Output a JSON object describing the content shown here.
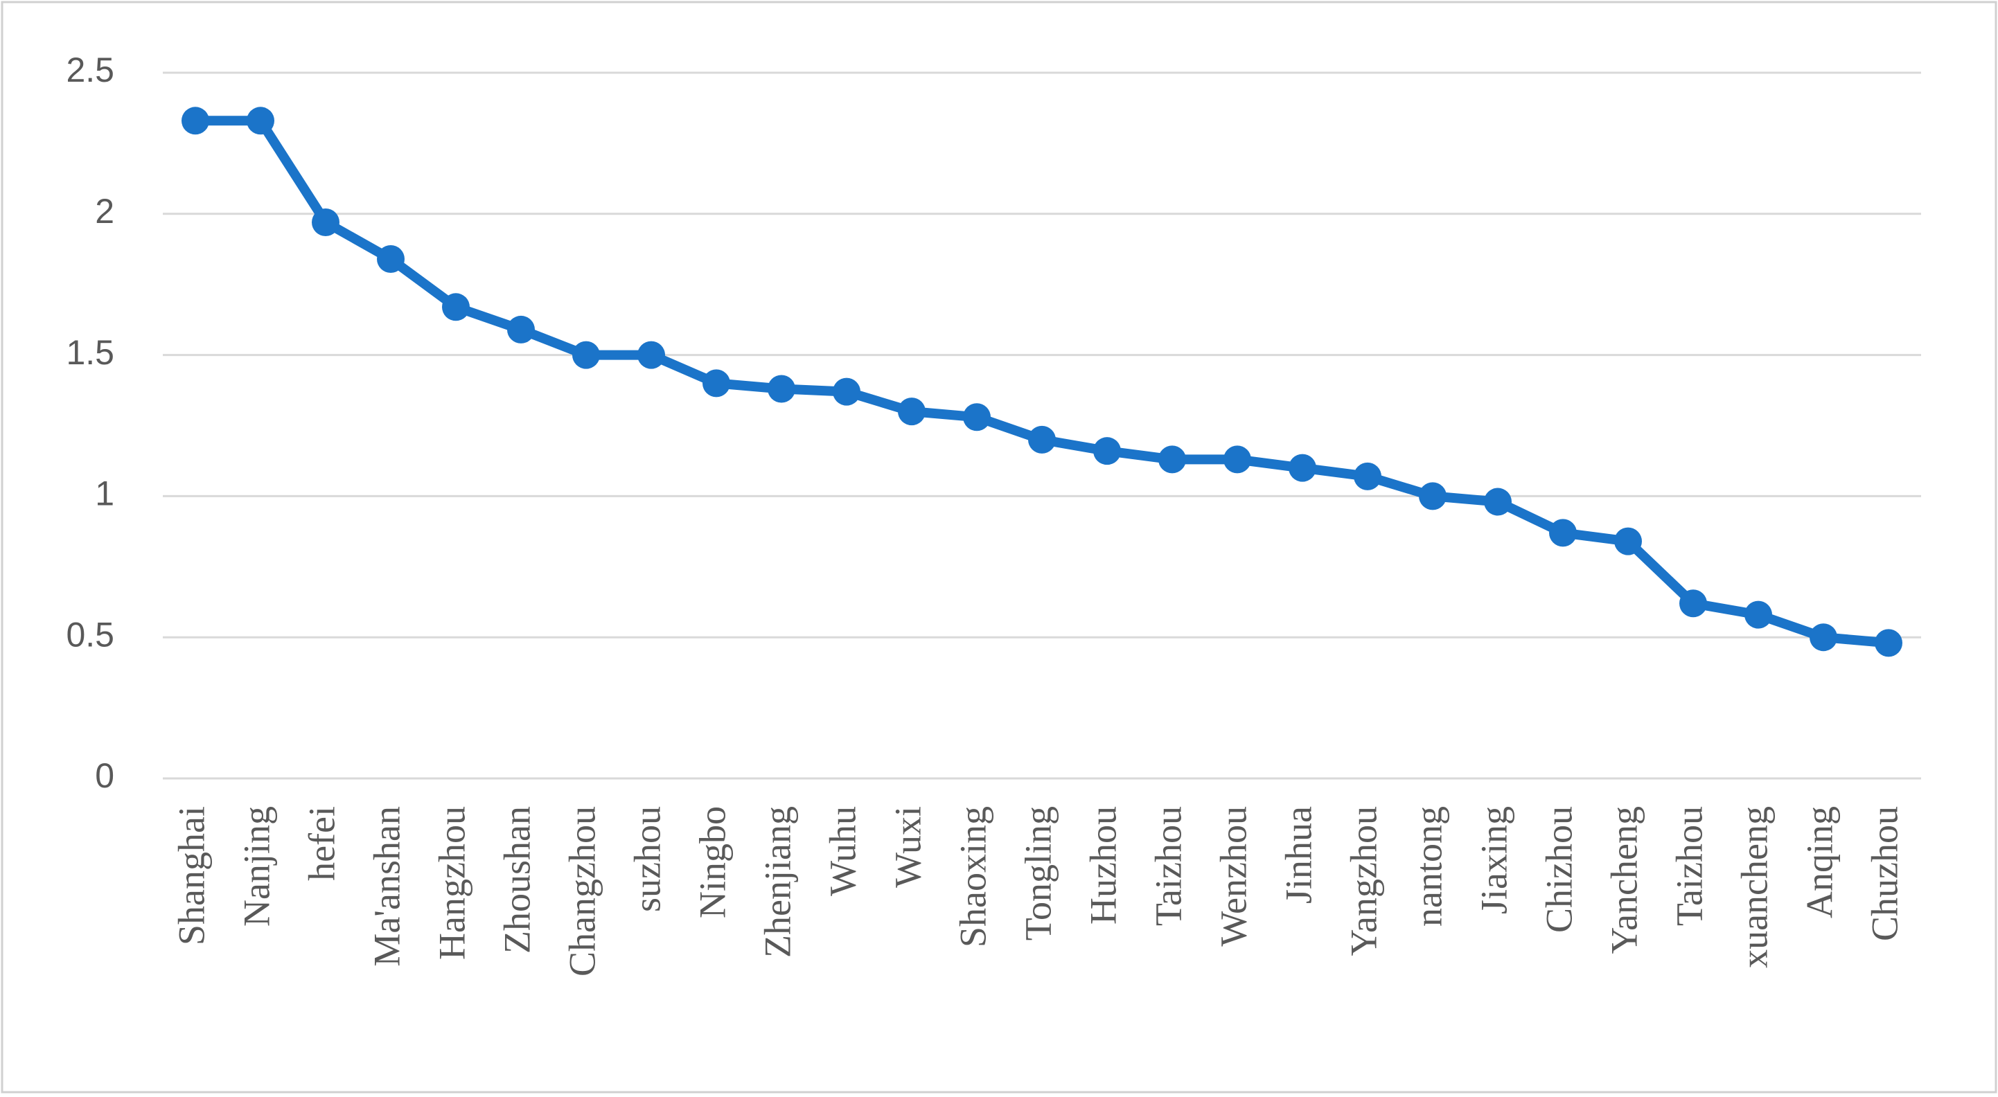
{
  "chart_data": {
    "type": "line",
    "categories": [
      "Shanghai",
      "Nanjing",
      "hefei",
      "Ma'anshan",
      "Hangzhou",
      "Zhoushan",
      "Changzhou",
      "suzhou",
      "Ningbo",
      "Zhenjiang",
      "Wuhu",
      "Wuxi",
      "Shaoxing",
      "Tongling",
      "Huzhou",
      "Taizhou",
      "Wenzhou",
      "Jinhua",
      "Yangzhou",
      "nantong",
      "Jiaxing",
      "Chizhou",
      "Yancheng",
      "Taizhou",
      "xuancheng",
      "Anqing",
      "Chuzhou"
    ],
    "values": [
      2.33,
      2.33,
      1.97,
      1.84,
      1.67,
      1.59,
      1.5,
      1.5,
      1.4,
      1.38,
      1.37,
      1.3,
      1.28,
      1.2,
      1.16,
      1.13,
      1.13,
      1.1,
      1.07,
      1.0,
      0.98,
      0.87,
      0.84,
      0.62,
      0.58,
      0.5,
      0.48
    ],
    "color": "#1b74c9",
    "ylim": [
      0,
      2.5
    ],
    "yticks": [
      0,
      0.5,
      1,
      1.5,
      2,
      2.5
    ],
    "grid": true
  }
}
